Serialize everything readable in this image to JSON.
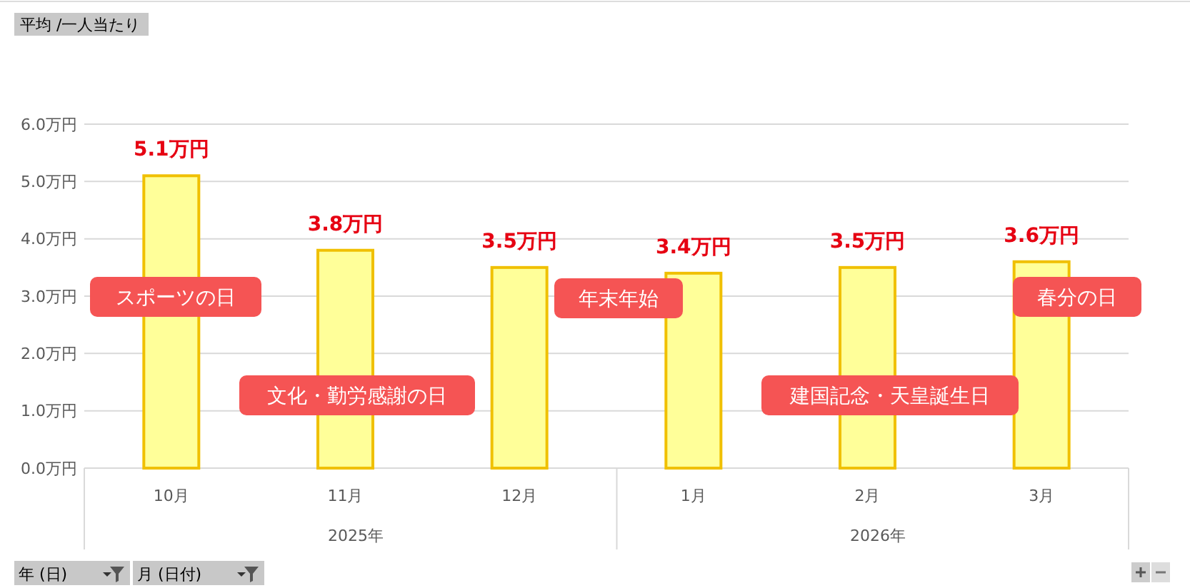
{
  "chart_data": {
    "type": "bar",
    "title": "平均 /一人当たり",
    "categories": [
      "10月",
      "11月",
      "12月",
      "1月",
      "2月",
      "3月"
    ],
    "values": [
      5.1,
      3.8,
      3.5,
      3.4,
      3.5,
      3.6
    ],
    "value_labels": [
      "5.1万円",
      "3.8万円",
      "3.5万円",
      "3.4万円",
      "3.5万円",
      "3.6万円"
    ],
    "color": "#ffff99",
    "ylim": [
      0,
      6
    ],
    "yticks": [
      {
        "value": 0,
        "label": "0.0万円"
      },
      {
        "value": 1,
        "label": "1.0万円"
      },
      {
        "value": 2,
        "label": "2.0万円"
      },
      {
        "value": 3,
        "label": "3.0万円"
      },
      {
        "value": 4,
        "label": "4.0万円"
      },
      {
        "value": 5,
        "label": "5.0万円"
      },
      {
        "value": 6,
        "label": "6.0万円"
      }
    ],
    "grid": "y",
    "annotations": [
      "スポーツの日",
      "文化・勤労感謝の日",
      "年末年始",
      "建国記念・天皇誕生日",
      "春分の日",
      "2025年",
      "2026年",
      "年 (日)",
      "月 (日付)"
    ]
  }
}
